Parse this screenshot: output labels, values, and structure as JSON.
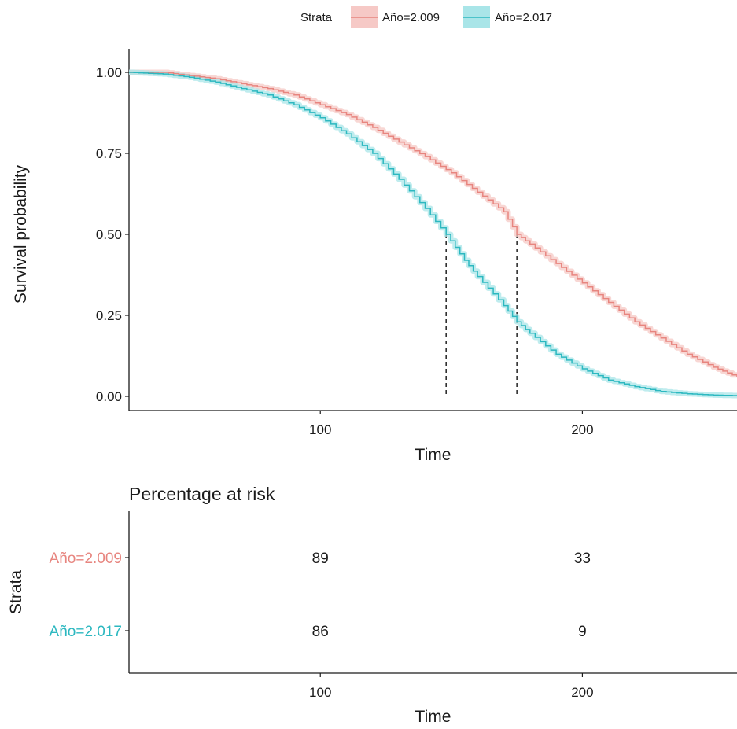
{
  "legend": {
    "title": "Strata",
    "items": [
      {
        "label": "Año=2.009",
        "color": "#E7857F",
        "fill": "#F6C9C6"
      },
      {
        "label": "Año=2.017",
        "color": "#2CB8C0",
        "fill": "#A9E5E8"
      }
    ]
  },
  "chart_data": [
    {
      "type": "line",
      "subtype": "kaplan-meier",
      "title": "",
      "xlabel": "Time",
      "ylabel": "Survival probability",
      "xlim": [
        27,
        259
      ],
      "ylim": [
        0,
        1
      ],
      "x_ticks": [
        "100",
        "200"
      ],
      "y_ticks": [
        "0.00",
        "0.25",
        "0.50",
        "0.75",
        "1.00"
      ],
      "legend_position": "top",
      "grid": false,
      "series": [
        {
          "name": "Año=2.009",
          "color": "#E7857F",
          "points": [
            [
              27,
              1.0
            ],
            [
              40,
              1.0
            ],
            [
              50,
              0.99
            ],
            [
              60,
              0.98
            ],
            [
              70,
              0.965
            ],
            [
              80,
              0.95
            ],
            [
              90,
              0.93
            ],
            [
              100,
              0.9
            ],
            [
              110,
              0.87
            ],
            [
              120,
              0.83
            ],
            [
              130,
              0.785
            ],
            [
              140,
              0.74
            ],
            [
              150,
              0.69
            ],
            [
              160,
              0.63
            ],
            [
              170,
              0.57
            ],
            [
              175,
              0.5
            ],
            [
              180,
              0.47
            ],
            [
              190,
              0.41
            ],
            [
              200,
              0.35
            ],
            [
              210,
              0.29
            ],
            [
              220,
              0.23
            ],
            [
              230,
              0.18
            ],
            [
              240,
              0.13
            ],
            [
              250,
              0.09
            ],
            [
              259,
              0.06
            ]
          ]
        },
        {
          "name": "Año=2.017",
          "color": "#2CB8C0",
          "points": [
            [
              27,
              1.0
            ],
            [
              40,
              0.995
            ],
            [
              50,
              0.985
            ],
            [
              60,
              0.97
            ],
            [
              70,
              0.95
            ],
            [
              80,
              0.93
            ],
            [
              90,
              0.9
            ],
            [
              100,
              0.86
            ],
            [
              110,
              0.81
            ],
            [
              120,
              0.75
            ],
            [
              130,
              0.67
            ],
            [
              140,
              0.58
            ],
            [
              148,
              0.5
            ],
            [
              155,
              0.42
            ],
            [
              160,
              0.37
            ],
            [
              170,
              0.28
            ],
            [
              175,
              0.23
            ],
            [
              180,
              0.195
            ],
            [
              190,
              0.13
            ],
            [
              200,
              0.085
            ],
            [
              210,
              0.05
            ],
            [
              220,
              0.03
            ],
            [
              230,
              0.015
            ],
            [
              240,
              0.008
            ],
            [
              250,
              0.004
            ],
            [
              259,
              0.002
            ]
          ]
        }
      ],
      "median_lines": [
        {
          "x": 148,
          "y": 0.5
        },
        {
          "x": 175,
          "y": 0.5
        }
      ]
    },
    {
      "type": "table",
      "title": "Percentage at risk",
      "xlabel": "Time",
      "ylabel": "Strata",
      "xlim": [
        27,
        259
      ],
      "x_ticks": [
        "100",
        "200"
      ],
      "rows": [
        {
          "label": "Año=2.009",
          "color": "#E7857F",
          "values": [
            {
              "x": 100,
              "text": "89"
            },
            {
              "x": 200,
              "text": "33"
            }
          ]
        },
        {
          "label": "Año=2.017",
          "color": "#2CB8C0",
          "values": [
            {
              "x": 100,
              "text": "86"
            },
            {
              "x": 200,
              "text": "9"
            }
          ]
        }
      ]
    }
  ]
}
